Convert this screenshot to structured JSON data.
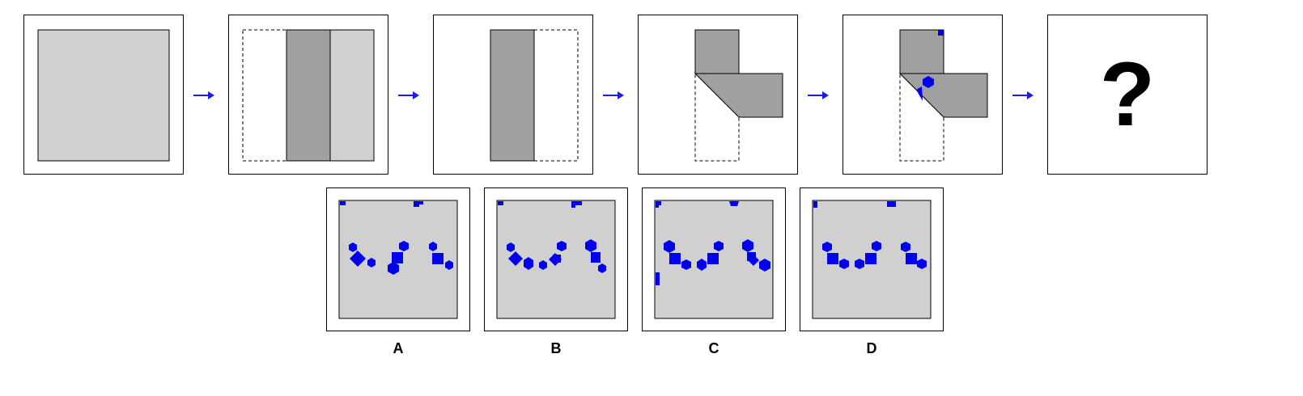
{
  "sequence": {
    "question_mark": "?"
  },
  "options": [
    {
      "label": "A"
    },
    {
      "label": "B"
    },
    {
      "label": "C"
    },
    {
      "label": "D"
    }
  ],
  "colors": {
    "paper": "#d0d0d0",
    "folded": "#a0a0a0",
    "hole": "#0000ee",
    "arrow": "#1a1aff"
  }
}
